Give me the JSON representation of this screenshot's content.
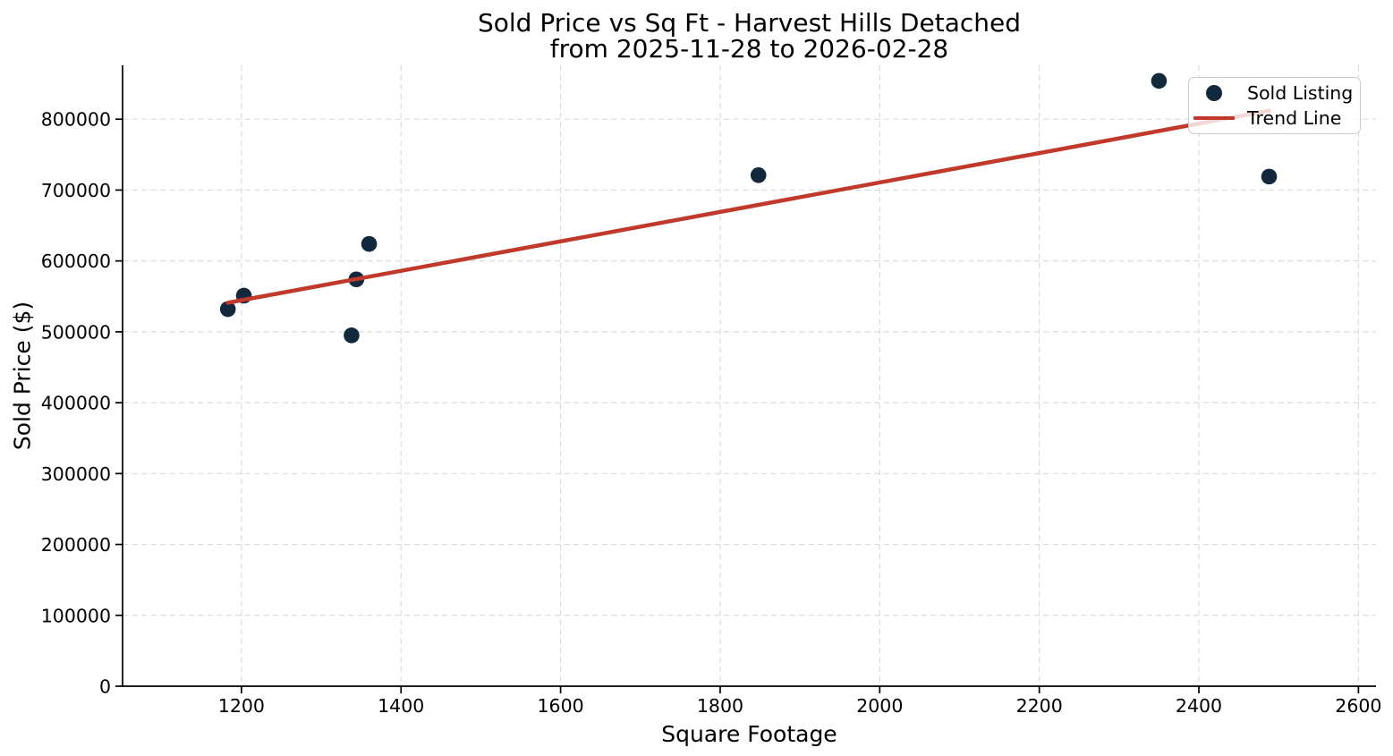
{
  "chart_data": {
    "type": "scatter",
    "title": "Sold Price vs Sq Ft - Harvest Hills Detached",
    "subtitle": "from 2025-11-28 to 2026-02-28",
    "xlabel": "Square Footage",
    "ylabel": "Sold Price ($)",
    "xlim": [
      1051,
      2622
    ],
    "ylim": [
      0,
      876000
    ],
    "x_ticks": [
      1200,
      1400,
      1600,
      1800,
      2000,
      2200,
      2400,
      2600
    ],
    "x_tick_labels": [
      "1200",
      "1400",
      "1600",
      "1800",
      "2000",
      "2200",
      "2400",
      "2600"
    ],
    "y_ticks": [
      0,
      100000,
      200000,
      300000,
      400000,
      500000,
      600000,
      700000,
      800000
    ],
    "y_tick_labels": [
      "0",
      "100000",
      "200000",
      "300000",
      "400000",
      "500000",
      "600000",
      "700000",
      "800000"
    ],
    "grid": true,
    "grid_style": "dashed",
    "legend_position": "upper right",
    "series": [
      {
        "name": "Sold Listing",
        "type": "scatter",
        "color": "#12283c",
        "marker": "circle",
        "points": [
          [
            1183,
            532000
          ],
          [
            1203,
            551000
          ],
          [
            1338,
            495000
          ],
          [
            1344,
            574000
          ],
          [
            1360,
            624000
          ],
          [
            1848,
            721000
          ],
          [
            2350,
            854000
          ],
          [
            2488,
            719000
          ]
        ]
      },
      {
        "name": "Trend Line",
        "type": "line",
        "color": "#c0392b",
        "points": [
          [
            1183,
            541000
          ],
          [
            2488,
            812000
          ]
        ]
      }
    ],
    "legend": {
      "entries": [
        {
          "label": "Sold Listing",
          "swatch": "dot"
        },
        {
          "label": "Trend Line",
          "swatch": "line"
        }
      ]
    },
    "colors": {
      "scatter": "#12283c",
      "trend": "#c0392b",
      "grid": "#dcdcdc",
      "axis": "#000000",
      "text": "#000000",
      "legend_border": "#cccccc",
      "legend_background": "rgba(255,255,255,0.8)",
      "background": "#ffffff"
    }
  }
}
